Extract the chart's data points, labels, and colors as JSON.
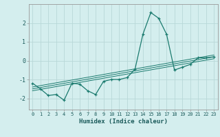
{
  "xlabel": "Humidex (Indice chaleur)",
  "bg_color": "#d4eeee",
  "grid_color": "#b8d8d8",
  "line_color": "#1a7a6e",
  "xlim": [
    -0.5,
    23.5
  ],
  "ylim": [
    -2.6,
    3.0
  ],
  "yticks": [
    -2,
    -1,
    0,
    1,
    2
  ],
  "xtick_vals": [
    0,
    1,
    2,
    3,
    4,
    5,
    6,
    7,
    8,
    9,
    10,
    11,
    12,
    13,
    14,
    15,
    16,
    17,
    18,
    19,
    20,
    21,
    22,
    23
  ],
  "xtick_labels": [
    "0",
    "1",
    "2",
    "3",
    "4",
    "5",
    "6",
    "7",
    "8",
    "9",
    "10",
    "11",
    "12",
    "13",
    "14",
    "15",
    "16",
    "17",
    "18",
    "19",
    "20",
    "21",
    "22",
    "23"
  ],
  "main_x": [
    0,
    1,
    2,
    3,
    4,
    5,
    6,
    7,
    8,
    9,
    10,
    11,
    12,
    13,
    14,
    15,
    16,
    17,
    18,
    19,
    20,
    21,
    22,
    23
  ],
  "main_y": [
    -1.2,
    -1.5,
    -1.85,
    -1.8,
    -2.1,
    -1.2,
    -1.25,
    -1.6,
    -1.8,
    -1.1,
    -1.0,
    -1.0,
    -0.9,
    -0.45,
    1.4,
    2.55,
    2.25,
    1.4,
    -0.5,
    -0.35,
    -0.2,
    0.15,
    0.15,
    0.2
  ],
  "reg_lines": [
    {
      "x": [
        0,
        23
      ],
      "y": [
        -1.6,
        0.1
      ]
    },
    {
      "x": [
        0,
        23
      ],
      "y": [
        -1.5,
        0.2
      ]
    },
    {
      "x": [
        0,
        23
      ],
      "y": [
        -1.4,
        0.3
      ]
    }
  ]
}
